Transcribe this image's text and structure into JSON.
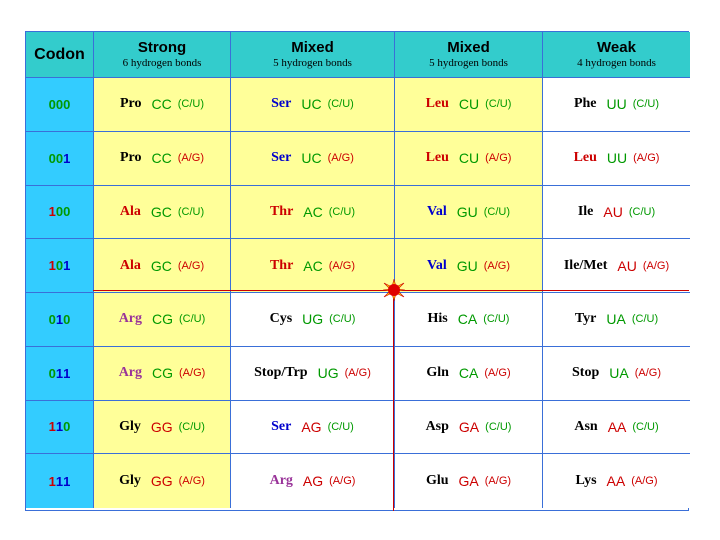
{
  "headers": [
    {
      "title": "Codon",
      "subtitle": ""
    },
    {
      "title": "Strong",
      "subtitle": "6 hydrogen bonds"
    },
    {
      "title": "Mixed",
      "subtitle": "5 hydrogen bonds"
    },
    {
      "title": "Mixed",
      "subtitle": "5 hydrogen bonds"
    },
    {
      "title": "Weak",
      "subtitle": "4 hydrogen bonds"
    }
  ],
  "colors": {
    "header": "#33cccc",
    "codon_column": "#33ccff",
    "yellow": "#ffff99",
    "green": "#009900",
    "blue": "#0000cc",
    "red": "#cc0000",
    "purple": "#993399",
    "black": "#000000",
    "border": "#3a6fd8"
  },
  "rows": [
    {
      "codon": "000",
      "cells": [
        {
          "aa": "Pro",
          "aa_color": "black",
          "pair": "CC",
          "pair_color": "green",
          "wobble": "(C/U)",
          "wobble_color": "green"
        },
        {
          "aa": "Ser",
          "aa_color": "blue",
          "pair": "UC",
          "pair_color": "green",
          "wobble": "(C/U)",
          "wobble_color": "green"
        },
        {
          "aa": "Leu",
          "aa_color": "red",
          "pair": "CU",
          "pair_color": "green",
          "wobble": "(C/U)",
          "wobble_color": "green"
        },
        {
          "aa": "Phe",
          "aa_color": "black",
          "pair": "UU",
          "pair_color": "green",
          "wobble": "(C/U)",
          "wobble_color": "green"
        }
      ]
    },
    {
      "codon": "001",
      "cells": [
        {
          "aa": "Pro",
          "aa_color": "black",
          "pair": "CC",
          "pair_color": "green",
          "wobble": "(A/G)",
          "wobble_color": "red"
        },
        {
          "aa": "Ser",
          "aa_color": "blue",
          "pair": "UC",
          "pair_color": "green",
          "wobble": "(A/G)",
          "wobble_color": "red"
        },
        {
          "aa": "Leu",
          "aa_color": "red",
          "pair": "CU",
          "pair_color": "green",
          "wobble": "(A/G)",
          "wobble_color": "red"
        },
        {
          "aa": "Leu",
          "aa_color": "red",
          "pair": "UU",
          "pair_color": "green",
          "wobble": "(A/G)",
          "wobble_color": "red"
        }
      ]
    },
    {
      "codon": "100",
      "cells": [
        {
          "aa": "Ala",
          "aa_color": "red",
          "pair": "GC",
          "pair_color": "green",
          "wobble": "(C/U)",
          "wobble_color": "green"
        },
        {
          "aa": "Thr",
          "aa_color": "red",
          "pair": "AC",
          "pair_color": "green",
          "wobble": "(C/U)",
          "wobble_color": "green"
        },
        {
          "aa": "Val",
          "aa_color": "blue",
          "pair": "GU",
          "pair_color": "green",
          "wobble": "(C/U)",
          "wobble_color": "green"
        },
        {
          "aa": "Ile",
          "aa_color": "black",
          "pair": "AU",
          "pair_color": "red",
          "wobble": "(C/U)",
          "wobble_color": "green"
        }
      ]
    },
    {
      "codon": "101",
      "cells": [
        {
          "aa": "Ala",
          "aa_color": "red",
          "pair": "GC",
          "pair_color": "green",
          "wobble": "(A/G)",
          "wobble_color": "red"
        },
        {
          "aa": "Thr",
          "aa_color": "red",
          "pair": "AC",
          "pair_color": "green",
          "wobble": "(A/G)",
          "wobble_color": "red"
        },
        {
          "aa": "Val",
          "aa_color": "blue",
          "pair": "GU",
          "pair_color": "green",
          "wobble": "(A/G)",
          "wobble_color": "red"
        },
        {
          "aa": "Ile/Met",
          "aa_color": "black",
          "pair": "AU",
          "pair_color": "red",
          "wobble": "(A/G)",
          "wobble_color": "red"
        }
      ]
    },
    {
      "codon": "010",
      "cells": [
        {
          "aa": "Arg",
          "aa_color": "purple",
          "pair": "CG",
          "pair_color": "green",
          "wobble": "(C/U)",
          "wobble_color": "green"
        },
        {
          "aa": "Cys",
          "aa_color": "black",
          "pair": "UG",
          "pair_color": "green",
          "wobble": "(C/U)",
          "wobble_color": "green"
        },
        {
          "aa": "His",
          "aa_color": "black",
          "pair": "CA",
          "pair_color": "green",
          "wobble": "(C/U)",
          "wobble_color": "green"
        },
        {
          "aa": "Tyr",
          "aa_color": "black",
          "pair": "UA",
          "pair_color": "green",
          "wobble": "(C/U)",
          "wobble_color": "green"
        }
      ]
    },
    {
      "codon": "011",
      "cells": [
        {
          "aa": "Arg",
          "aa_color": "purple",
          "pair": "CG",
          "pair_color": "green",
          "wobble": "(A/G)",
          "wobble_color": "red"
        },
        {
          "aa": "Stop/Trp",
          "aa_color": "black",
          "pair": "UG",
          "pair_color": "green",
          "wobble": "(A/G)",
          "wobble_color": "red"
        },
        {
          "aa": "Gln",
          "aa_color": "black",
          "pair": "CA",
          "pair_color": "green",
          "wobble": "(A/G)",
          "wobble_color": "red"
        },
        {
          "aa": "Stop",
          "aa_color": "black",
          "pair": "UA",
          "pair_color": "green",
          "wobble": "(A/G)",
          "wobble_color": "red"
        }
      ]
    },
    {
      "codon": "110",
      "cells": [
        {
          "aa": "Gly",
          "aa_color": "black",
          "pair": "GG",
          "pair_color": "red",
          "wobble": "(C/U)",
          "wobble_color": "green"
        },
        {
          "aa": "Ser",
          "aa_color": "blue",
          "pair": "AG",
          "pair_color": "red",
          "wobble": "(C/U)",
          "wobble_color": "green"
        },
        {
          "aa": "Asp",
          "aa_color": "black",
          "pair": "GA",
          "pair_color": "red",
          "wobble": "(C/U)",
          "wobble_color": "green"
        },
        {
          "aa": "Asn",
          "aa_color": "black",
          "pair": "AA",
          "pair_color": "red",
          "wobble": "(C/U)",
          "wobble_color": "green"
        }
      ]
    },
    {
      "codon": "111",
      "cells": [
        {
          "aa": "Gly",
          "aa_color": "black",
          "pair": "GG",
          "pair_color": "red",
          "wobble": "(A/G)",
          "wobble_color": "red"
        },
        {
          "aa": "Arg",
          "aa_color": "purple",
          "pair": "AG",
          "pair_color": "red",
          "wobble": "(A/G)",
          "wobble_color": "red"
        },
        {
          "aa": "Glu",
          "aa_color": "black",
          "pair": "GA",
          "pair_color": "red",
          "wobble": "(A/G)",
          "wobble_color": "red"
        },
        {
          "aa": "Lys",
          "aa_color": "black",
          "pair": "AA",
          "pair_color": "red",
          "wobble": "(A/G)",
          "wobble_color": "red"
        }
      ]
    }
  ],
  "codon_colors": [
    [
      "green",
      "green",
      "green"
    ],
    [
      "green",
      "green",
      "blue"
    ],
    [
      "red",
      "green",
      "green"
    ],
    [
      "red",
      "green",
      "blue"
    ],
    [
      "green",
      "blue",
      "green"
    ],
    [
      "green",
      "blue",
      "blue"
    ],
    [
      "red",
      "blue",
      "green"
    ],
    [
      "red",
      "blue",
      "blue"
    ]
  ],
  "shading": [
    [
      "yellow",
      "yellow",
      "yellow",
      "white"
    ],
    [
      "yellow",
      "yellow",
      "yellow",
      "white"
    ],
    [
      "yellow",
      "yellow",
      "yellow",
      "white"
    ],
    [
      "yellow",
      "yellow",
      "yellow",
      "white"
    ],
    [
      "yellow",
      "white",
      "white",
      "white"
    ],
    [
      "yellow",
      "white",
      "white",
      "white"
    ],
    [
      "yellow",
      "white",
      "white",
      "white"
    ],
    [
      "yellow",
      "white",
      "white",
      "white"
    ]
  ],
  "marker": "red-star-icon"
}
